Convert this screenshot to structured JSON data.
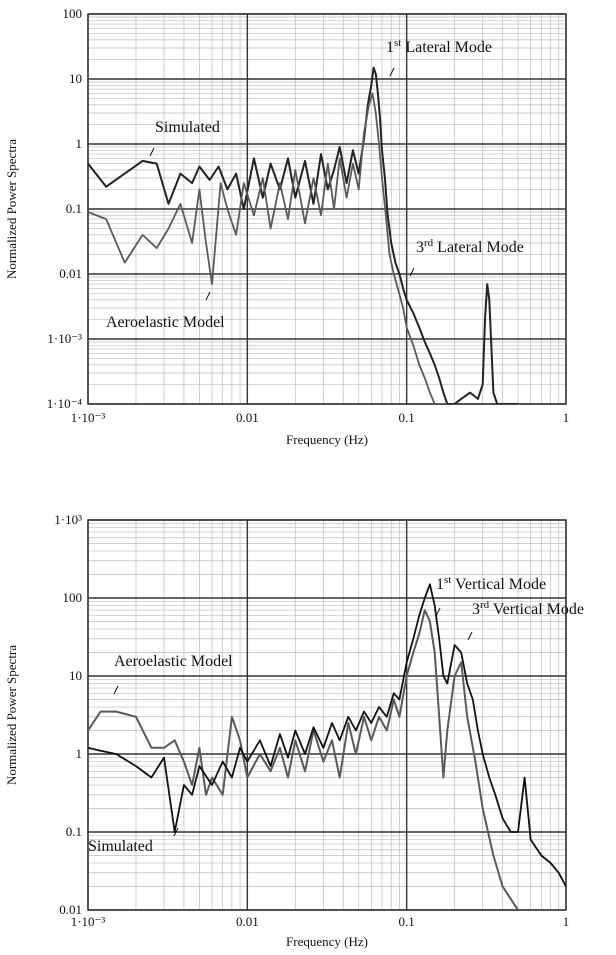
{
  "chart_data": [
    {
      "type": "line",
      "xscale": "log",
      "yscale": "log",
      "xlim": [
        0.001,
        1
      ],
      "ylim": [
        0.0001,
        100
      ],
      "xlabel": "Frequency (Hz)",
      "ylabel": "Normalized Power Spectra",
      "x_tick_labels": [
        "1·10⁻³",
        "0.01",
        "0.1",
        "1"
      ],
      "y_tick_labels": [
        "1·10⁻⁴",
        "1·10⁻³",
        "0.01",
        "0.1",
        "1",
        "10",
        "100"
      ],
      "grid": true,
      "annotations": [
        {
          "prefix": "1",
          "sup": "st",
          "suffix": " Lateral Mode",
          "x": 0.065,
          "y": 12
        },
        {
          "prefix": "3",
          "sup": "rd",
          "suffix": " Lateral Mode",
          "x": 0.33,
          "y": 0.007
        },
        {
          "prefix": "",
          "sup": "",
          "suffix": "Simulated",
          "x": 0.0022,
          "y": 0.6
        },
        {
          "prefix": "",
          "sup": "",
          "suffix": "Aeroelastic Model",
          "x": 0.0065,
          "y": 0.005
        }
      ],
      "series": [
        {
          "color": "#222222",
          "x": [
            0.001,
            0.0013,
            0.0017,
            0.0022,
            0.0027,
            0.0032,
            0.0038,
            0.0045,
            0.005,
            0.0058,
            0.0066,
            0.0075,
            0.0085,
            0.0095,
            0.011,
            0.0125,
            0.014,
            0.016,
            0.018,
            0.02,
            0.023,
            0.026,
            0.029,
            0.032,
            0.035,
            0.038,
            0.042,
            0.046,
            0.05,
            0.054,
            0.057,
            0.06,
            0.062,
            0.064,
            0.066,
            0.068,
            0.07,
            0.073,
            0.076,
            0.08,
            0.085,
            0.09,
            0.095,
            0.1,
            0.11,
            0.12,
            0.13,
            0.14,
            0.15,
            0.16,
            0.17,
            0.18,
            0.2,
            0.22,
            0.25,
            0.28,
            0.3,
            0.31,
            0.32,
            0.33,
            0.34,
            0.35,
            0.37,
            0.4,
            0.45,
            0.5
          ],
          "y": [
            0.5,
            0.22,
            0.35,
            0.55,
            0.5,
            0.12,
            0.35,
            0.25,
            0.45,
            0.28,
            0.45,
            0.2,
            0.35,
            0.1,
            0.6,
            0.15,
            0.5,
            0.2,
            0.6,
            0.15,
            0.55,
            0.12,
            0.7,
            0.2,
            0.4,
            0.9,
            0.25,
            0.8,
            0.35,
            1.2,
            4,
            8,
            15,
            12,
            6,
            2.5,
            0.8,
            0.3,
            0.08,
            0.03,
            0.015,
            0.01,
            0.006,
            0.004,
            0.0025,
            0.0015,
            0.0009,
            0.0006,
            0.0004,
            0.00025,
            0.00015,
            0.0001,
            0.0001,
            0.00012,
            0.00015,
            0.00012,
            0.0002,
            0.002,
            0.007,
            0.004,
            0.0008,
            0.00015,
            0.0001,
            0.0001,
            0.0001,
            0.0001
          ]
        },
        {
          "color": "#5a5a5a",
          "x": [
            0.001,
            0.0013,
            0.0017,
            0.0022,
            0.0027,
            0.0032,
            0.0038,
            0.0045,
            0.005,
            0.0055,
            0.006,
            0.0068,
            0.0075,
            0.0085,
            0.0095,
            0.011,
            0.0125,
            0.014,
            0.016,
            0.018,
            0.02,
            0.023,
            0.026,
            0.029,
            0.032,
            0.035,
            0.038,
            0.042,
            0.046,
            0.05,
            0.054,
            0.058,
            0.061,
            0.064,
            0.067,
            0.07,
            0.074,
            0.078,
            0.083,
            0.088,
            0.095,
            0.1,
            0.11,
            0.12,
            0.13,
            0.14,
            0.15,
            0.16,
            0.18
          ],
          "y": [
            0.09,
            0.07,
            0.015,
            0.04,
            0.025,
            0.05,
            0.12,
            0.03,
            0.2,
            0.03,
            0.007,
            0.25,
            0.1,
            0.04,
            0.25,
            0.08,
            0.3,
            0.05,
            0.25,
            0.07,
            0.4,
            0.06,
            0.3,
            0.08,
            0.5,
            0.1,
            0.6,
            0.15,
            0.5,
            0.2,
            1.5,
            4,
            6,
            3,
            1,
            0.3,
            0.08,
            0.02,
            0.01,
            0.006,
            0.003,
            0.0015,
            0.0008,
            0.0004,
            0.00025,
            0.00015,
            0.0001,
            0.0001,
            0.0001
          ]
        }
      ]
    },
    {
      "type": "line",
      "xscale": "log",
      "yscale": "log",
      "xlim": [
        0.001,
        1
      ],
      "ylim": [
        0.01,
        1000
      ],
      "xlabel": "Frequency (Hz)",
      "ylabel": "Normalized Power Spectra",
      "x_tick_labels": [
        "1·10⁻³",
        "0.01",
        "0.1",
        "1"
      ],
      "y_tick_labels": [
        "0.01",
        "0.1",
        "1",
        "10",
        "100",
        "1·10³"
      ],
      "grid": true,
      "annotations": [
        {
          "prefix": "1",
          "sup": "st",
          "suffix": " Vertical Mode",
          "x": 0.14,
          "y": 150
        },
        {
          "prefix": "3",
          "sup": "rd",
          "suffix": " Vertical Mode",
          "x": 0.23,
          "y": 40
        },
        {
          "prefix": "",
          "sup": "",
          "suffix": "Aeroelastic Model",
          "x": 0.0015,
          "y": 4
        },
        {
          "prefix": "",
          "sup": "",
          "suffix": "Simulated",
          "x": 0.0035,
          "y": 0.3
        }
      ],
      "series": [
        {
          "color": "#5a5a5a",
          "x": [
            0.001,
            0.0012,
            0.0015,
            0.002,
            0.0025,
            0.003,
            0.0035,
            0.004,
            0.0045,
            0.005,
            0.0055,
            0.006,
            0.007,
            0.008,
            0.009,
            0.01,
            0.012,
            0.014,
            0.016,
            0.018,
            0.02,
            0.023,
            0.026,
            0.03,
            0.034,
            0.038,
            0.043,
            0.048,
            0.054,
            0.06,
            0.067,
            0.075,
            0.083,
            0.09,
            0.1,
            0.11,
            0.12,
            0.13,
            0.14,
            0.15,
            0.16,
            0.17,
            0.18,
            0.2,
            0.22,
            0.24,
            0.27,
            0.3,
            0.35,
            0.4,
            0.5,
            0.6,
            0.8,
            1
          ],
          "y": [
            2,
            3.5,
            3.5,
            3,
            1.2,
            1.2,
            1.5,
            0.8,
            0.4,
            1.2,
            0.3,
            0.5,
            0.3,
            3,
            1.5,
            0.5,
            1,
            0.6,
            1.2,
            0.5,
            1.5,
            0.6,
            2,
            0.8,
            1.5,
            0.5,
            2.5,
            1,
            3,
            1.5,
            3,
            2,
            5,
            3,
            10,
            20,
            35,
            70,
            50,
            20,
            3,
            0.5,
            2,
            10,
            15,
            3,
            0.8,
            0.2,
            0.05,
            0.02,
            0.01,
            0.01,
            0.01,
            0.01
          ]
        },
        {
          "color": "#111111",
          "x": [
            0.001,
            0.0012,
            0.0015,
            0.002,
            0.0025,
            0.003,
            0.0035,
            0.004,
            0.0045,
            0.005,
            0.006,
            0.007,
            0.008,
            0.009,
            0.01,
            0.012,
            0.014,
            0.016,
            0.018,
            0.02,
            0.023,
            0.026,
            0.03,
            0.034,
            0.038,
            0.043,
            0.048,
            0.054,
            0.06,
            0.067,
            0.075,
            0.083,
            0.09,
            0.1,
            0.11,
            0.12,
            0.13,
            0.14,
            0.15,
            0.16,
            0.17,
            0.18,
            0.2,
            0.22,
            0.24,
            0.26,
            0.28,
            0.3,
            0.33,
            0.36,
            0.4,
            0.45,
            0.5,
            0.55,
            0.6,
            0.7,
            0.8,
            0.9,
            1
          ],
          "y": [
            1.2,
            1.1,
            1,
            0.7,
            0.5,
            0.9,
            0.1,
            0.4,
            0.3,
            0.7,
            0.4,
            0.8,
            0.5,
            1.2,
            0.8,
            1.5,
            0.7,
            1.8,
            0.9,
            2,
            1,
            2.2,
            1.2,
            2.5,
            1.5,
            3,
            2,
            3.5,
            2.5,
            4,
            3,
            6,
            5,
            15,
            30,
            60,
            100,
            150,
            80,
            30,
            10,
            8,
            25,
            20,
            8,
            5,
            2,
            1,
            0.5,
            0.3,
            0.15,
            0.1,
            0.1,
            0.5,
            0.08,
            0.05,
            0.04,
            0.03,
            0.02
          ]
        }
      ]
    }
  ]
}
